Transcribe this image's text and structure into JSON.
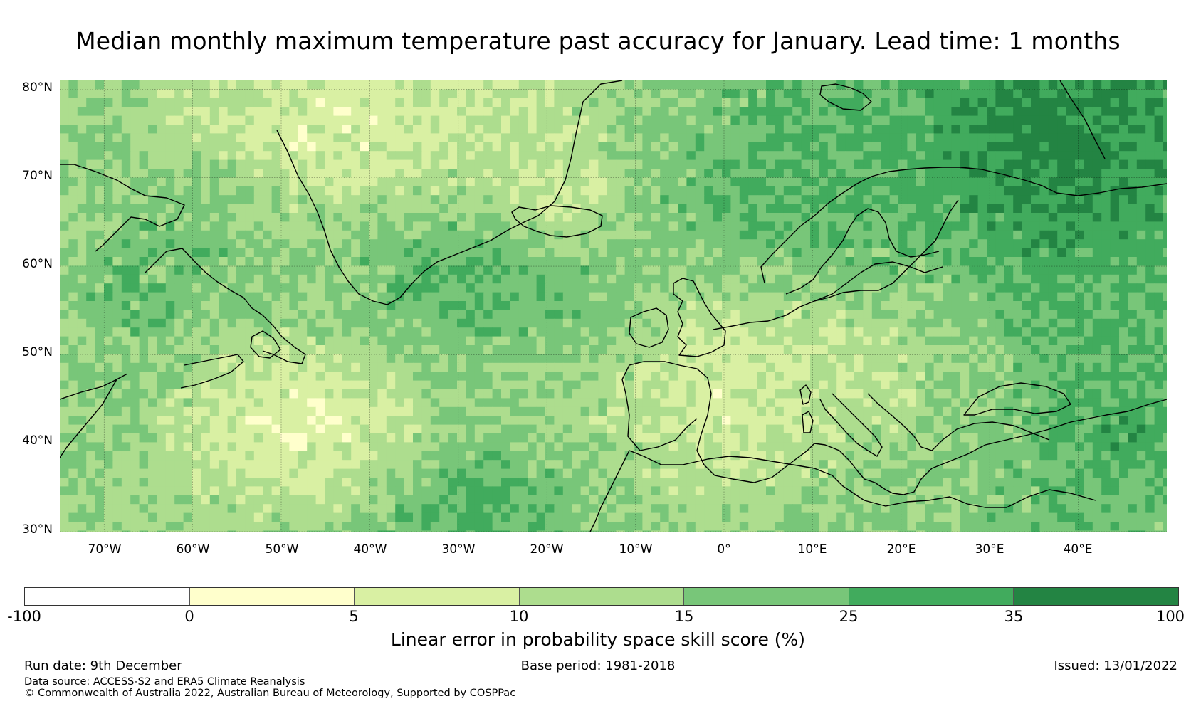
{
  "title": "Median monthly maximum temperature past accuracy for January. Lead time: 1 months",
  "map": {
    "lat_labels": [
      "80°N",
      "70°N",
      "60°N",
      "50°N",
      "40°N",
      "30°N"
    ],
    "lon_labels": [
      "70°W",
      "60°W",
      "50°W",
      "40°W",
      "30°W",
      "20°W",
      "10°W",
      "0°",
      "10°E",
      "20°E",
      "30°E",
      "40°E"
    ],
    "lat_range": [
      30,
      81
    ],
    "lon_range": [
      -75,
      50
    ]
  },
  "legend": {
    "label": "Linear error in probability space skill score (%)",
    "ticks": [
      "-100",
      "0",
      "5",
      "10",
      "15",
      "25",
      "35",
      "100"
    ],
    "colors": [
      "#ffffff",
      "#ffffcc",
      "#d9f0a3",
      "#addd8e",
      "#78c679",
      "#41ab5d",
      "#238443"
    ]
  },
  "footer": {
    "run_date": "Run date: 9th December",
    "base_period": "Base period: 1981-2018",
    "issued": "Issued: 13/01/2022",
    "data_source": "Data source: ACCESS-S2 and ERA5 Climate Reanalysis",
    "copyright": "© Commonwealth of Australia 2022, Australian Bureau of Meteorology, Supported by COSPPac"
  }
}
